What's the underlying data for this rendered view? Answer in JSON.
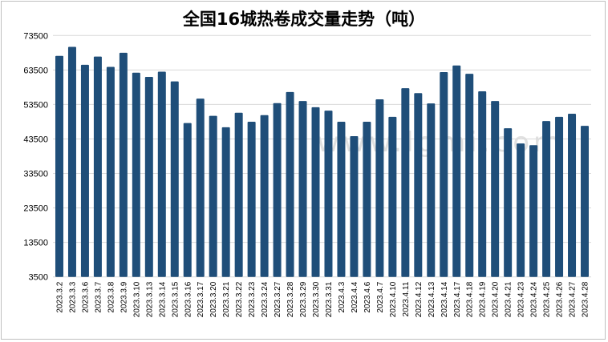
{
  "chart_data": {
    "type": "bar",
    "title": "全国16城热卷成交量走势（吨）",
    "xlabel": "",
    "ylabel": "",
    "ylim": [
      3500,
      73500
    ],
    "yticks": [
      3500,
      13500,
      23500,
      33500,
      43500,
      53500,
      63500,
      73500
    ],
    "grid": true,
    "color": "#1f4e79",
    "categories": [
      "2023.3.2",
      "2023.3.3",
      "2023.3.6",
      "2023.3.7",
      "2023.3.8",
      "2023.3.9",
      "2023.3.10",
      "2023.3.13",
      "2023.3.14",
      "2023.3.15",
      "2023.3.16",
      "2023.3.17",
      "2023.3.20",
      "2023.3.21",
      "2023.3.22",
      "2023.3.23",
      "2023.3.24",
      "2023.3.27",
      "2023.3.28",
      "2023.3.29",
      "2023.3.30",
      "2023.3.31",
      "2023.4.3",
      "2023.4.4",
      "2023.4.6",
      "2023.4.7",
      "2023.4.10",
      "2023.4.11",
      "2023.4.12",
      "2023.4.13",
      "2023.4.14",
      "2023.4.17",
      "2023.4.18",
      "2023.4.19",
      "2023.4.20",
      "2023.4.21",
      "2023.4.23",
      "2023.4.24",
      "2023.4.25",
      "2023.4.26",
      "2023.4.27",
      "2023.4.28"
    ],
    "values": [
      67600,
      70200,
      65000,
      67400,
      64400,
      68500,
      62700,
      61500,
      63000,
      60200,
      48100,
      55200,
      50200,
      46900,
      51100,
      48500,
      50400,
      53900,
      57100,
      54500,
      52700,
      51700,
      48500,
      44300,
      48500,
      55000,
      49900,
      58200,
      56800,
      53800,
      62900,
      64800,
      62400,
      57300,
      54500,
      46600,
      42200,
      41700,
      48700,
      49900,
      50800,
      47300
    ]
  },
  "watermark": "www.lgmi.com"
}
